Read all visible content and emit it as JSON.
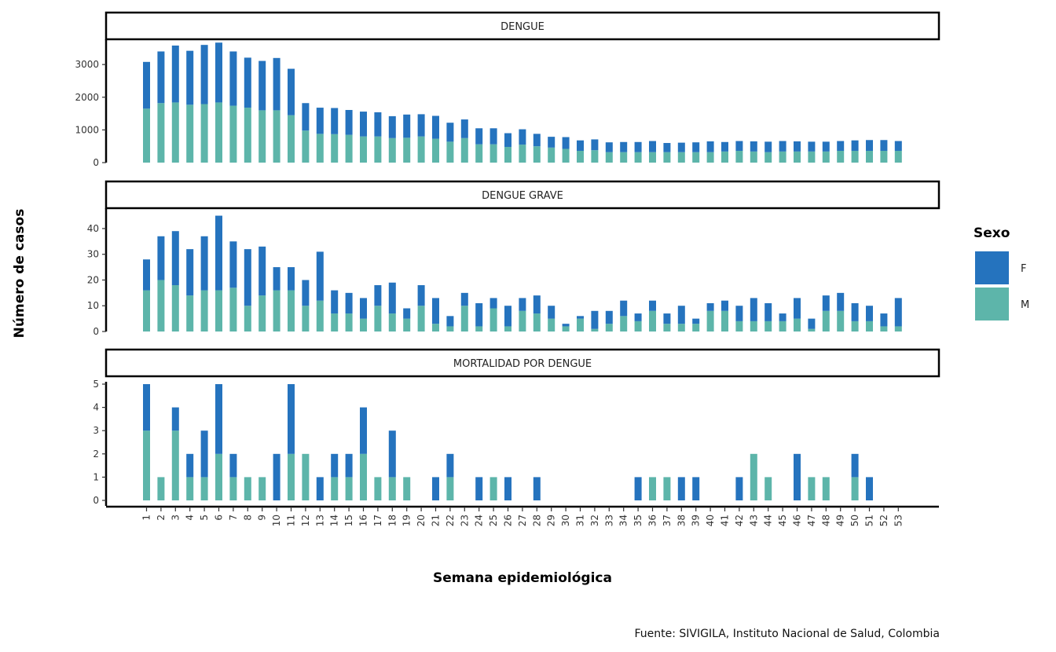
{
  "chart_data": {
    "type": "bar",
    "stacked": true,
    "xlabel": "Semana epidemiológica",
    "ylabel": "Número de casos",
    "caption": "Fuente: SIVIGILA, Instituto Nacional de Salud, Colombia",
    "legend": {
      "title": "Sexo",
      "placement": "right",
      "entries": [
        {
          "label": "F",
          "color": "#2573be"
        },
        {
          "label": "M",
          "color": "#5db5aa"
        }
      ]
    },
    "categories": [
      "1",
      "2",
      "3",
      "4",
      "5",
      "6",
      "7",
      "8",
      "9",
      "10",
      "11",
      "12",
      "13",
      "14",
      "15",
      "16",
      "17",
      "18",
      "19",
      "20",
      "21",
      "22",
      "23",
      "24",
      "25",
      "26",
      "27",
      "28",
      "29",
      "30",
      "31",
      "32",
      "33",
      "34",
      "35",
      "36",
      "37",
      "38",
      "39",
      "40",
      "41",
      "42",
      "43",
      "44",
      "45",
      "46",
      "47",
      "48",
      "49",
      "50",
      "51",
      "52",
      "53"
    ],
    "panels": [
      {
        "title": "DENGUE",
        "ylim": [
          0,
          3700
        ],
        "yticks": [
          0,
          1000,
          2000,
          3000
        ],
        "series": [
          {
            "name": "M",
            "values": [
              1650,
              1820,
              1840,
              1770,
              1790,
              1840,
              1740,
              1680,
              1600,
              1600,
              1450,
              980,
              880,
              870,
              850,
              800,
              800,
              750,
              760,
              800,
              730,
              640,
              750,
              560,
              560,
              480,
              550,
              500,
              460,
              420,
              360,
              380,
              320,
              320,
              320,
              320,
              320,
              320,
              320,
              320,
              340,
              360,
              340,
              320,
              340,
              340,
              340,
              340,
              360,
              360,
              360,
              360,
              360
            ]
          },
          {
            "name": "F",
            "values": [
              1430,
              1580,
              1740,
              1650,
              1810,
              1830,
              1660,
              1530,
              1510,
              1600,
              1420,
              840,
              800,
              800,
              760,
              760,
              740,
              670,
              710,
              680,
              700,
              580,
              570,
              490,
              490,
              420,
              470,
              380,
              330,
              360,
              320,
              330,
              300,
              310,
              310,
              340,
              280,
              290,
              300,
              330,
              290,
              300,
              310,
              320,
              320,
              310,
              300,
              300,
              300,
              320,
              330,
              330,
              300
            ]
          }
        ]
      },
      {
        "title": "DENGUE GRAVE",
        "ylim": [
          0,
          47
        ],
        "yticks": [
          0,
          10,
          20,
          30,
          40
        ],
        "series": [
          {
            "name": "M",
            "values": [
              16,
              20,
              18,
              14,
              16,
              16,
              17,
              10,
              14,
              16,
              16,
              10,
              12,
              7,
              7,
              5,
              10,
              7,
              5,
              10,
              3,
              2,
              10,
              2,
              9,
              2,
              8,
              7,
              5,
              2,
              5,
              1,
              3,
              6,
              4,
              8,
              3,
              3,
              3,
              8,
              8,
              4,
              4,
              4,
              4,
              5,
              1,
              8,
              8,
              4,
              4,
              2,
              2
            ]
          },
          {
            "name": "F",
            "values": [
              12,
              17,
              21,
              18,
              21,
              29,
              18,
              22,
              19,
              9,
              9,
              10,
              19,
              9,
              8,
              8,
              8,
              12,
              4,
              8,
              10,
              4,
              5,
              9,
              4,
              8,
              5,
              7,
              5,
              1,
              1,
              7,
              5,
              6,
              3,
              4,
              4,
              7,
              2,
              3,
              4,
              6,
              9,
              7,
              3,
              8,
              4,
              6,
              7,
              7,
              6,
              5,
              11
            ]
          }
        ]
      },
      {
        "title": "MORTALIDAD POR DENGUE",
        "ylim": [
          0,
          5
        ],
        "yticks": [
          0,
          1,
          2,
          3,
          4,
          5
        ],
        "series": [
          {
            "name": "M",
            "values": [
              3,
              1,
              3,
              1,
              1,
              2,
              1,
              1,
              1,
              0,
              2,
              2,
              0,
              1,
              1,
              2,
              1,
              1,
              1,
              0,
              0,
              1,
              0,
              0,
              1,
              0,
              0,
              0,
              0,
              0,
              0,
              0,
              0,
              0,
              0,
              1,
              1,
              0,
              0,
              0,
              0,
              0,
              2,
              1,
              0,
              0,
              1,
              1,
              0,
              1,
              0,
              0,
              0
            ]
          },
          {
            "name": "F",
            "values": [
              2,
              0,
              1,
              1,
              2,
              3,
              1,
              0,
              0,
              2,
              3,
              0,
              1,
              1,
              1,
              2,
              0,
              2,
              0,
              0,
              1,
              1,
              0,
              1,
              0,
              1,
              0,
              1,
              0,
              0,
              0,
              0,
              0,
              0,
              1,
              0,
              0,
              1,
              1,
              0,
              0,
              1,
              0,
              0,
              0,
              2,
              0,
              0,
              0,
              1,
              1,
              0,
              0
            ]
          }
        ]
      }
    ]
  }
}
